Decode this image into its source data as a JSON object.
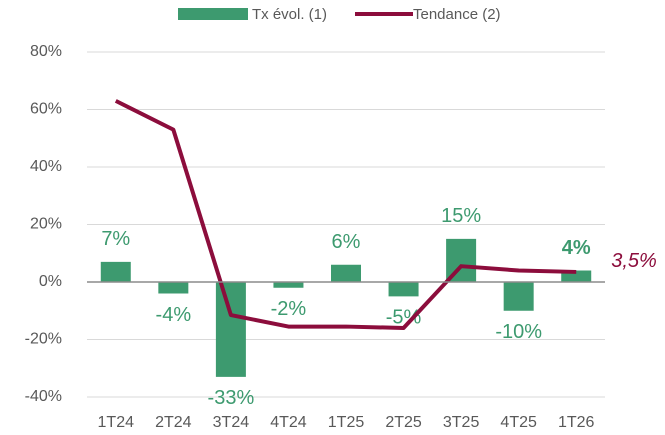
{
  "chart_data": {
    "type": "bar_line",
    "categories": [
      "1T24",
      "2T24",
      "3T24",
      "4T24",
      "1T25",
      "2T25",
      "3T25",
      "4T25",
      "1T26"
    ],
    "series": [
      {
        "name": "Tx évol. (1)",
        "type": "bar",
        "color": "#3d9a6f",
        "values": [
          7,
          -4,
          -33,
          -2,
          6,
          -5,
          15,
          -10,
          4
        ],
        "value_labels": [
          "7%",
          "-4%",
          "-33%",
          "-2%",
          "6%",
          "-5%",
          "15%",
          "-10%",
          "4%"
        ]
      },
      {
        "name": "Tendance (2)",
        "type": "line",
        "color": "#8c0d3c",
        "values": [
          63,
          53,
          -11.5,
          -15.5,
          -15.5,
          -16,
          5.5,
          4,
          3.5
        ],
        "value_labels": [
          null,
          null,
          null,
          null,
          null,
          null,
          null,
          null,
          "3,5%"
        ]
      }
    ],
    "ylim": [
      -40,
      80
    ],
    "yticks": [
      {
        "value": -40,
        "label": "-40%"
      },
      {
        "value": -20,
        "label": "-20%"
      },
      {
        "value": 0,
        "label": "0%"
      },
      {
        "value": 20,
        "label": "20%"
      },
      {
        "value": 40,
        "label": "40%"
      },
      {
        "value": 60,
        "label": "60%"
      },
      {
        "value": 80,
        "label": "80%"
      }
    ],
    "grid": true,
    "legend": "top"
  }
}
